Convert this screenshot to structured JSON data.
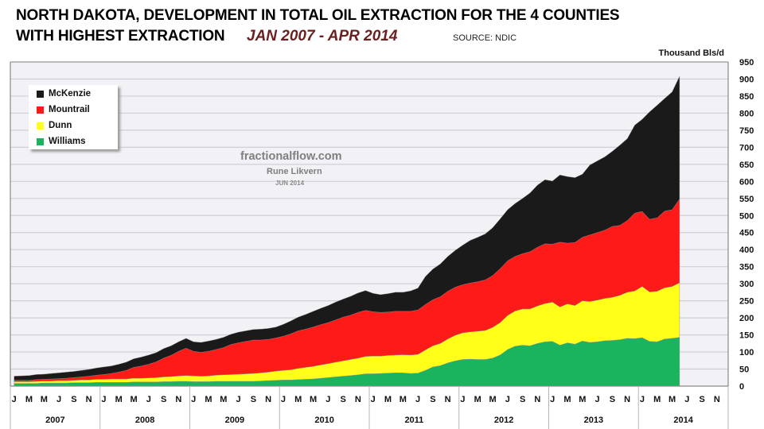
{
  "header": {
    "title_line1": "NORTH DAKOTA, DEVELOPMENT IN TOTAL OIL EXTRACTION FOR THE 4 COUNTIES",
    "title_line2": "WITH HIGHEST EXTRACTION",
    "period": "JAN 2007 - APR 2014",
    "source": "SOURCE: NDIC",
    "unit": "Thousand Bls/d"
  },
  "watermark": {
    "site": "fractionalflow.com",
    "author": "Rune Likvern",
    "date": "JUN 2014"
  },
  "colors": {
    "McKenzie": "#1a1a1a",
    "Mountrail": "#ff1a1a",
    "Dunn": "#ffff1a",
    "Williams": "#1ab35e",
    "plot_bg": "#f2f1f6",
    "grid": "#d0cfd6"
  },
  "chart_data": {
    "type": "area",
    "stacked": true,
    "title": "NORTH DAKOTA, DEVELOPMENT IN TOTAL OIL EXTRACTION FOR THE 4 COUNTIES WITH HIGHEST EXTRACTION",
    "subtitle": "JAN 2007 - APR 2014",
    "ylabel": "Thousand Bls/d",
    "xlabel": "",
    "ylim": [
      0,
      950
    ],
    "yticks": [
      0,
      50,
      100,
      150,
      200,
      250,
      300,
      350,
      400,
      450,
      500,
      550,
      600,
      650,
      700,
      750,
      800,
      850,
      900,
      950
    ],
    "y_axis_side": "right",
    "grid": true,
    "legend_position": "top-left",
    "x_month_labels": [
      "J",
      "M",
      "M",
      "J",
      "S",
      "N"
    ],
    "x_years": [
      "2007",
      "2008",
      "2009",
      "2010",
      "2011",
      "2012",
      "2013",
      "2014"
    ],
    "x_range": [
      "2007-01",
      "2014-12"
    ],
    "data_start": "2007-01",
    "data_end": "2014-04",
    "series": [
      {
        "name": "Williams",
        "values": [
          8,
          8,
          8,
          8,
          9,
          9,
          9,
          9,
          10,
          10,
          10,
          11,
          11,
          11,
          11,
          11,
          12,
          12,
          12,
          12,
          13,
          13,
          14,
          14,
          13,
          13,
          13,
          14,
          14,
          14,
          14,
          14,
          14,
          15,
          16,
          17,
          18,
          18,
          19,
          20,
          21,
          23,
          25,
          27,
          29,
          31,
          33,
          36,
          36,
          37,
          38,
          39,
          39,
          37,
          38,
          46,
          56,
          60,
          68,
          74,
          78,
          79,
          78,
          78,
          82,
          91,
          107,
          117,
          120,
          118,
          125,
          130,
          131,
          120,
          127,
          123,
          132,
          128,
          130,
          133,
          134,
          136,
          140,
          139,
          142,
          131,
          130,
          138,
          140,
          143
        ]
      },
      {
        "name": "Dunn",
        "values": [
          5,
          5,
          5,
          6,
          6,
          6,
          7,
          7,
          7,
          8,
          8,
          9,
          9,
          10,
          10,
          10,
          11,
          11,
          12,
          13,
          14,
          15,
          16,
          17,
          17,
          16,
          17,
          18,
          19,
          20,
          21,
          22,
          23,
          24,
          25,
          27,
          28,
          30,
          33,
          35,
          37,
          39,
          41,
          43,
          45,
          47,
          49,
          51,
          52,
          51,
          52,
          52,
          53,
          54,
          55,
          60,
          62,
          65,
          70,
          75,
          78,
          80,
          83,
          85,
          90,
          95,
          100,
          103,
          106,
          108,
          110,
          112,
          115,
          112,
          114,
          113,
          118,
          120,
          122,
          124,
          126,
          130,
          135,
          140,
          150,
          145,
          148,
          150,
          152,
          160
        ]
      },
      {
        "name": "Mountrail",
        "values": [
          4,
          4,
          4,
          5,
          5,
          6,
          6,
          7,
          8,
          9,
          11,
          12,
          14,
          16,
          20,
          25,
          32,
          36,
          40,
          46,
          55,
          62,
          72,
          80,
          72,
          70,
          72,
          75,
          80,
          88,
          92,
          95,
          98,
          96,
          96,
          97,
          100,
          105,
          110,
          112,
          115,
          118,
          120,
          124,
          128,
          130,
          134,
          135,
          130,
          128,
          127,
          128,
          127,
          128,
          130,
          133,
          135,
          137,
          140,
          141,
          141,
          143,
          145,
          148,
          152,
          158,
          160,
          160,
          162,
          168,
          172,
          175,
          170,
          190,
          178,
          185,
          186,
          195,
          198,
          200,
          208,
          205,
          210,
          228,
          220,
          213,
          215,
          225,
          225,
          245
        ]
      },
      {
        "name": "McKenzie",
        "values": [
          12,
          13,
          14,
          15,
          15,
          16,
          17,
          18,
          18,
          19,
          20,
          21,
          22,
          22,
          23,
          24,
          25,
          26,
          27,
          27,
          28,
          28,
          28,
          29,
          28,
          29,
          30,
          30,
          30,
          30,
          31,
          31,
          31,
          32,
          32,
          32,
          35,
          38,
          40,
          43,
          46,
          48,
          50,
          52,
          53,
          55,
          57,
          58,
          54,
          52,
          54,
          56,
          56,
          60,
          64,
          82,
          90,
          96,
          102,
          108,
          116,
          125,
          130,
          135,
          140,
          146,
          150,
          155,
          162,
          172,
          182,
          188,
          185,
          197,
          195,
          190,
          185,
          205,
          210,
          215,
          220,
          235,
          240,
          258,
          270,
          315,
          330,
          330,
          345,
          360
        ]
      }
    ]
  }
}
